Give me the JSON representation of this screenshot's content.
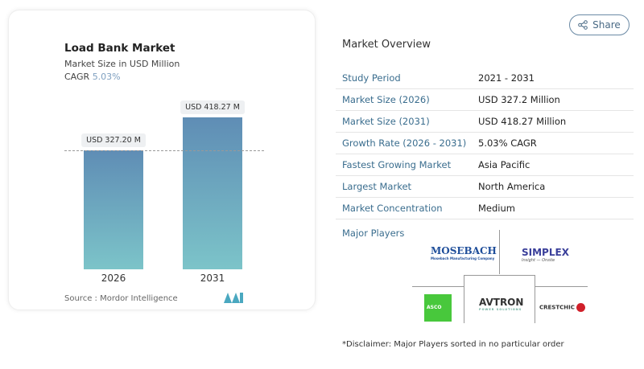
{
  "share_label": "Share",
  "chart_card": {
    "title": "Load Bank Market",
    "subtitle": "Market Size in USD Million",
    "cagr_label": "CAGR",
    "cagr_value": "5.03%",
    "source": "Source :  Mordor Intelligence"
  },
  "chart_data": {
    "type": "bar",
    "categories": [
      "2026",
      "2031"
    ],
    "values": [
      327.2,
      418.27
    ],
    "data_labels": [
      "USD 327.20 M",
      "USD 418.27 M"
    ],
    "title": "Load Bank Market",
    "subtitle": "Market Size in USD Million",
    "colors": [
      "#5f8db5",
      "#7cc4c9"
    ]
  },
  "overview": {
    "title": "Market Overview",
    "rows": [
      {
        "label": "Study Period",
        "value": "2021 - 2031"
      },
      {
        "label": "Market Size (2026)",
        "value": "USD 327.2 Million"
      },
      {
        "label": "Market Size (2031)",
        "value": "USD 418.27 Million"
      },
      {
        "label": "Growth Rate (2026 - 2031)",
        "value": "5.03% CAGR"
      },
      {
        "label": "Fastest Growing Market",
        "value": "Asia Pacific"
      },
      {
        "label": "Largest Market",
        "value": "North America"
      },
      {
        "label": "Market Concentration",
        "value": "Medium"
      }
    ]
  },
  "major_players": {
    "title": "Major Players",
    "logos": [
      "Mosebach Manufacturing Company",
      "SIMPLEX Insight Onsite",
      "ASCO",
      "AVTRON POWER SOLUTIONS",
      "CRESTCHIC"
    ]
  },
  "disclaimer": "*Disclaimer: Major Players sorted in no particular order"
}
